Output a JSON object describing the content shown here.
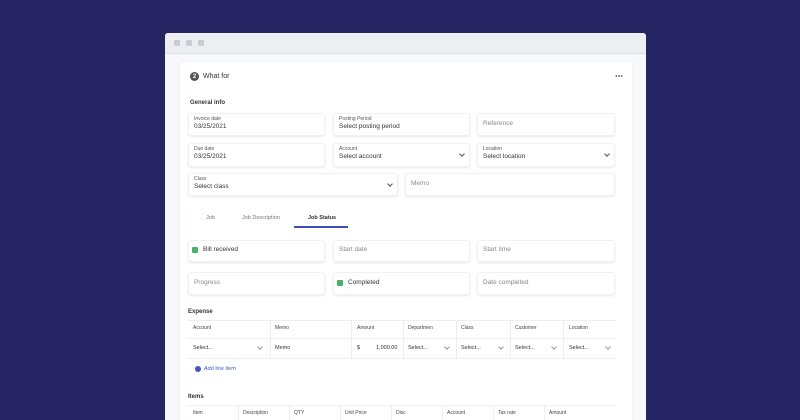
{
  "section": {
    "step": "2",
    "title": "What for"
  },
  "general_info": {
    "heading": "General info",
    "fields": [
      {
        "label": "Invoice date",
        "value": "03/25/2021"
      },
      {
        "label": "Posting Period",
        "value": "Select posting period"
      },
      {
        "placeholder": "Reference"
      },
      {
        "label": "Due date",
        "value": "03/25/2021"
      },
      {
        "label": "Account",
        "value": "Select account"
      },
      {
        "label": "Location",
        "value": "Select location"
      },
      {
        "label": "Class",
        "value": "Select class"
      },
      {
        "placeholder": "Memo"
      }
    ]
  },
  "tabs": [
    "Job",
    "Job Description",
    "Job Status"
  ],
  "job_status": {
    "fields": [
      {
        "text": "Bill received",
        "checked": true
      },
      {
        "placeholder": "Start date"
      },
      {
        "placeholder": "Start time"
      },
      {
        "placeholder": "Progress"
      },
      {
        "text": "Completed",
        "checked": true
      },
      {
        "placeholder": "Date completed"
      }
    ]
  },
  "expense": {
    "heading": "Expense",
    "columns": [
      "Account",
      "Memo",
      "Amount",
      "Departmen",
      "Class",
      "Customer",
      "Location"
    ],
    "row": {
      "account": "Select...",
      "memo": "Memo",
      "currency": "$",
      "amount": "1,000.00",
      "department": "Select...",
      "class": "Select...",
      "customer": "Select...",
      "location": "Select..."
    },
    "add_line": "Add line item"
  },
  "items": {
    "heading": "Items",
    "columns": [
      "Item",
      "Description",
      "QTY",
      "Unit Price",
      "Disc",
      "Account",
      "Tax rate",
      "Amount"
    ]
  }
}
